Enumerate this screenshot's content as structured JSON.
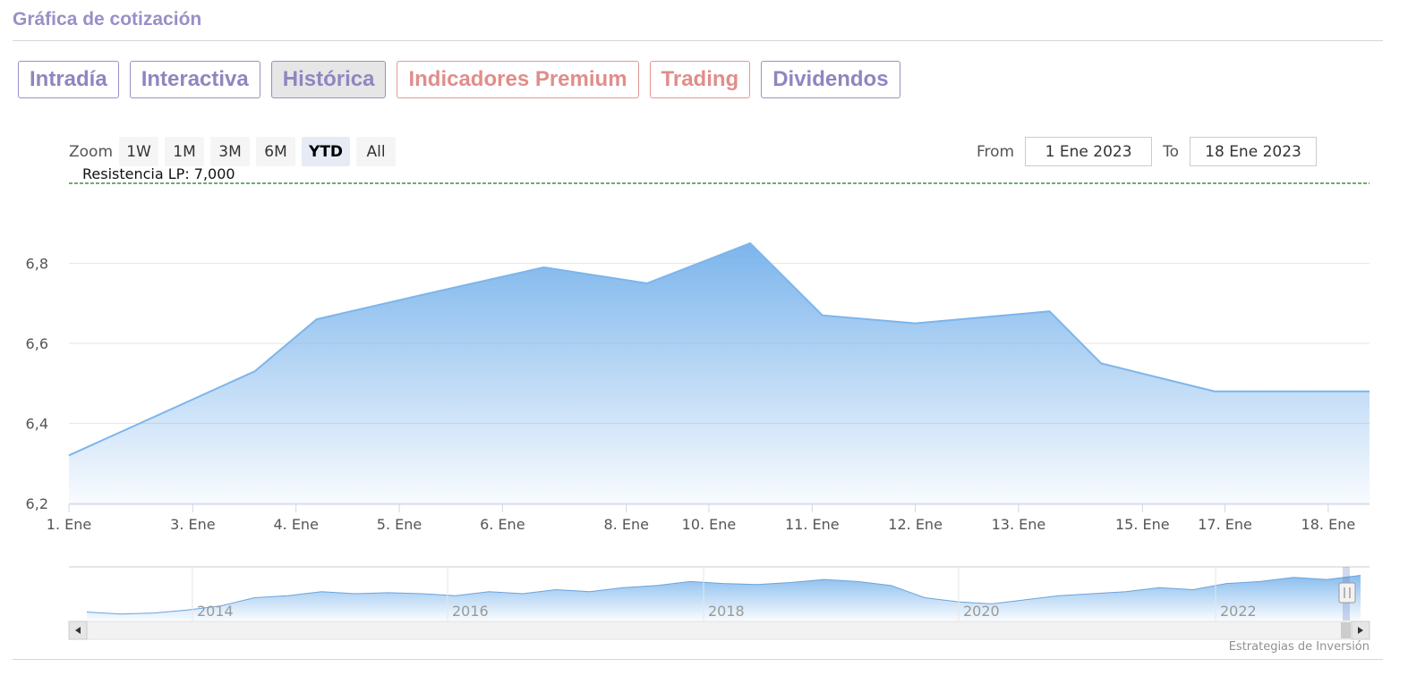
{
  "page": {
    "title": "Gráfica de cotización",
    "watermark": "Estrategias de Inversión"
  },
  "tabs": [
    {
      "label": "Intradía",
      "style": "normal"
    },
    {
      "label": "Interactiva",
      "style": "normal"
    },
    {
      "label": "Histórica",
      "style": "active"
    },
    {
      "label": "Indicadores Premium",
      "style": "premium"
    },
    {
      "label": "Trading",
      "style": "premium"
    },
    {
      "label": "Dividendos",
      "style": "normal"
    }
  ],
  "zoom": {
    "label": "Zoom",
    "buttons": [
      "1W",
      "1M",
      "3M",
      "6M",
      "YTD",
      "All"
    ],
    "active": "YTD"
  },
  "range": {
    "from_label": "From",
    "from_value": "1 Ene 2023",
    "to_label": "To",
    "to_value": "18 Ene 2023"
  },
  "colors": {
    "accent": "#9a8fc6",
    "premium": "#e08e8b",
    "series": "#7cb5ec",
    "resistance": "#1a7a1a"
  },
  "chart_data": {
    "type": "area",
    "categories": [
      "1. Ene",
      "3. Ene",
      "4. Ene",
      "5. Ene",
      "6. Ene",
      "8. Ene",
      "10. Ene",
      "11. Ene",
      "12. Ene",
      "13. Ene",
      "15. Ene",
      "17. Ene",
      "18. Ene"
    ],
    "y_ticks": [
      "6,2",
      "6,4",
      "6,6",
      "6,8"
    ],
    "ylim": [
      6.2,
      7.0
    ],
    "grid": true,
    "legend": "none",
    "resistance": {
      "label": "Resistencia LP: 7,000",
      "value": 7.0
    },
    "series": [
      {
        "x": [
          0,
          1.8,
          2.4,
          3.4,
          4.6,
          5.6,
          6.6,
          7.3,
          8.2,
          9.5,
          10.0,
          11.1,
          11.8,
          12.6
        ],
        "values": [
          6.32,
          6.53,
          6.66,
          6.72,
          6.79,
          6.75,
          6.85,
          6.67,
          6.65,
          6.68,
          6.55,
          6.48,
          6.48,
          6.48
        ]
      }
    ],
    "navigator": {
      "labels": [
        "2014",
        "2016",
        "2018",
        "2020",
        "2022"
      ],
      "values": [
        5.1,
        5.0,
        5.05,
        5.2,
        5.4,
        5.8,
        5.9,
        6.1,
        6.0,
        6.05,
        6.0,
        5.9,
        6.1,
        6.0,
        6.2,
        6.1,
        6.3,
        6.4,
        6.6,
        6.5,
        6.45,
        6.55,
        6.7,
        6.6,
        6.4,
        5.8,
        5.6,
        5.5,
        5.7,
        5.9,
        6.0,
        6.1,
        6.3,
        6.2,
        6.5,
        6.6,
        6.8,
        6.7,
        6.9
      ]
    }
  }
}
